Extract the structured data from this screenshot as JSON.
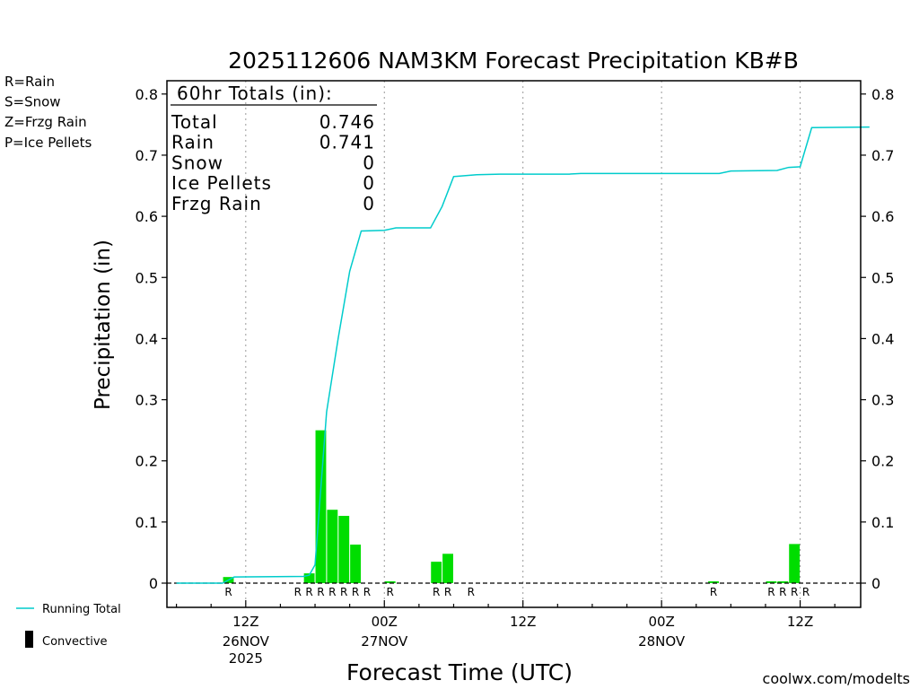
{
  "chart_data": {
    "type": "bar",
    "title": "2025112606 NAM3KM Forecast Precipitation KB#B",
    "xlabel": "Forecast Time (UTC)",
    "ylabel": "Precipitation (in)",
    "ylim": [
      -0.04,
      0.82
    ],
    "xlim_hours": [
      0,
      62
    ],
    "y_ticks": [
      "0",
      "0.1",
      "0.2",
      "0.3",
      "0.4",
      "0.5",
      "0.6",
      "0.7",
      "0.8"
    ],
    "x_ticks": [
      {
        "hour": 6,
        "label": "12Z",
        "sub": "26NOV",
        "sub2": "2025"
      },
      {
        "hour": 18,
        "label": "00Z",
        "sub": "27NOV",
        "sub2": ""
      },
      {
        "hour": 30,
        "label": "12Z",
        "sub": "",
        "sub2": ""
      },
      {
        "hour": 42,
        "label": "00Z",
        "sub": "28NOV",
        "sub2": ""
      },
      {
        "hour": 54,
        "label": "12Z",
        "sub": "",
        "sub2": ""
      }
    ],
    "grid": "vertical dotted at x ticks",
    "hourly_bars": {
      "name": "Rain",
      "color": "#00dd00",
      "hours": [
        5,
        12,
        13,
        14,
        15,
        16,
        19,
        23,
        24,
        47,
        52,
        53,
        54
      ],
      "values": [
        0.01,
        0.016,
        0.25,
        0.12,
        0.11,
        0.063,
        0.003,
        0.035,
        0.048,
        0.003,
        0.003,
        0.003,
        0.064
      ]
    },
    "ptype_markers": [
      {
        "hour": 5,
        "type": "R"
      },
      {
        "hour": 11,
        "type": "R"
      },
      {
        "hour": 12,
        "type": "R"
      },
      {
        "hour": 13,
        "type": "R"
      },
      {
        "hour": 14,
        "type": "R"
      },
      {
        "hour": 15,
        "type": "R"
      },
      {
        "hour": 16,
        "type": "R"
      },
      {
        "hour": 17,
        "type": "R"
      },
      {
        "hour": 19,
        "type": "R"
      },
      {
        "hour": 23,
        "type": "R"
      },
      {
        "hour": 24,
        "type": "R"
      },
      {
        "hour": 26,
        "type": "R"
      },
      {
        "hour": 47,
        "type": "R"
      },
      {
        "hour": 52,
        "type": "R"
      },
      {
        "hour": 53,
        "type": "R"
      },
      {
        "hour": 54,
        "type": "R"
      },
      {
        "hour": 55,
        "type": "R"
      }
    ],
    "running_total": {
      "name": "Running Total",
      "color": "#00cccc",
      "points": [
        [
          0,
          0
        ],
        [
          4,
          0
        ],
        [
          5,
          0.01
        ],
        [
          11,
          0.011
        ],
        [
          11.5,
          0.013
        ],
        [
          12,
          0.03
        ],
        [
          13,
          0.28
        ],
        [
          14,
          0.4
        ],
        [
          15,
          0.51
        ],
        [
          16,
          0.576
        ],
        [
          18,
          0.577
        ],
        [
          19,
          0.581
        ],
        [
          22,
          0.581
        ],
        [
          23,
          0.616
        ],
        [
          24,
          0.665
        ],
        [
          26,
          0.668
        ],
        [
          28,
          0.669
        ],
        [
          34,
          0.669
        ],
        [
          35,
          0.67
        ],
        [
          47,
          0.67
        ],
        [
          48,
          0.674
        ],
        [
          52,
          0.675
        ],
        [
          53,
          0.68
        ],
        [
          54,
          0.681
        ],
        [
          55,
          0.745
        ],
        [
          60,
          0.746
        ]
      ]
    },
    "totals_box": {
      "header": "60hr Totals (in):",
      "rows": [
        {
          "label": "Total",
          "value": "0.746"
        },
        {
          "label": "Rain",
          "value": "0.741"
        },
        {
          "label": "Snow",
          "value": "0"
        },
        {
          "label": "Ice Pellets",
          "value": "0"
        },
        {
          "label": "Frzg Rain",
          "value": "0"
        }
      ]
    },
    "ptype_legend": [
      {
        "text": "R=Rain",
        "color": "#22cc22"
      },
      {
        "text": "S=Snow",
        "color": "#3355dd"
      },
      {
        "text": "Z=Frzg Rain",
        "color": "#ee8833"
      },
      {
        "text": "P=Ice Pellets",
        "color": "#ee2277"
      }
    ],
    "series_legend": [
      {
        "text": "Running Total",
        "color": "#00cccc"
      },
      {
        "text": "Convective",
        "color": "#000000"
      }
    ],
    "credit": "coolwx.com/modelts",
    "credit_color": "#cc2222"
  }
}
